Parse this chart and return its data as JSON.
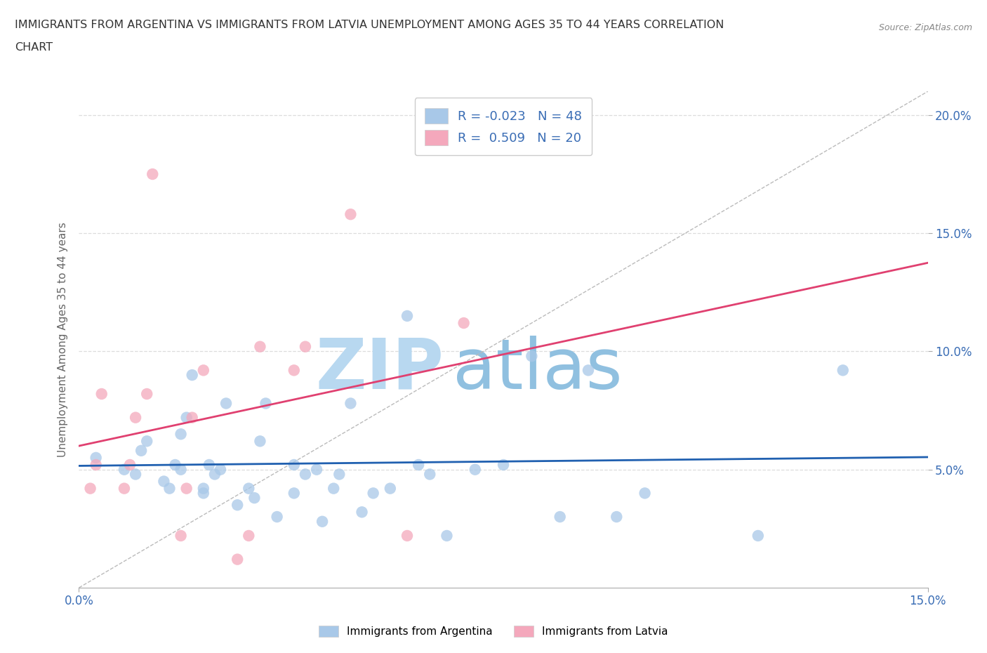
{
  "title_line1": "IMMIGRANTS FROM ARGENTINA VS IMMIGRANTS FROM LATVIA UNEMPLOYMENT AMONG AGES 35 TO 44 YEARS CORRELATION",
  "title_line2": "CHART",
  "source": "Source: ZipAtlas.com",
  "ylabel": "Unemployment Among Ages 35 to 44 years",
  "xlim": [
    0,
    0.15
  ],
  "ylim": [
    0,
    0.21
  ],
  "xticks": [
    0.0,
    0.15
  ],
  "xticklabels": [
    "0.0%",
    "15.0%"
  ],
  "yticks_right": [
    0.05,
    0.1,
    0.15,
    0.2
  ],
  "yticklabels_right": [
    "5.0%",
    "10.0%",
    "15.0%",
    "20.0%"
  ],
  "yticks_grid": [
    0.05,
    0.1,
    0.15,
    0.2
  ],
  "argentina_R": -0.023,
  "argentina_N": 48,
  "latvia_R": 0.509,
  "latvia_N": 20,
  "argentina_color": "#a8c8e8",
  "latvia_color": "#f4a8bc",
  "argentina_line_color": "#2060b0",
  "latvia_line_color": "#e04070",
  "diag_color": "#cccccc",
  "watermark_zip": "ZIP",
  "watermark_atlas": "atlas",
  "watermark_color_zip": "#b8d8f0",
  "watermark_color_atlas": "#90c0e0",
  "argentina_x": [
    0.003,
    0.008,
    0.01,
    0.011,
    0.012,
    0.015,
    0.016,
    0.017,
    0.018,
    0.018,
    0.019,
    0.02,
    0.022,
    0.022,
    0.023,
    0.024,
    0.025,
    0.026,
    0.028,
    0.03,
    0.031,
    0.032,
    0.033,
    0.035,
    0.038,
    0.038,
    0.04,
    0.042,
    0.043,
    0.045,
    0.046,
    0.048,
    0.05,
    0.052,
    0.055,
    0.058,
    0.06,
    0.062,
    0.065,
    0.07,
    0.075,
    0.08,
    0.085,
    0.09,
    0.095,
    0.1,
    0.12,
    0.135
  ],
  "argentina_y": [
    0.055,
    0.05,
    0.048,
    0.058,
    0.062,
    0.045,
    0.042,
    0.052,
    0.05,
    0.065,
    0.072,
    0.09,
    0.042,
    0.04,
    0.052,
    0.048,
    0.05,
    0.078,
    0.035,
    0.042,
    0.038,
    0.062,
    0.078,
    0.03,
    0.04,
    0.052,
    0.048,
    0.05,
    0.028,
    0.042,
    0.048,
    0.078,
    0.032,
    0.04,
    0.042,
    0.115,
    0.052,
    0.048,
    0.022,
    0.05,
    0.052,
    0.098,
    0.03,
    0.092,
    0.03,
    0.04,
    0.022,
    0.092
  ],
  "latvia_x": [
    0.002,
    0.003,
    0.004,
    0.008,
    0.009,
    0.01,
    0.012,
    0.013,
    0.018,
    0.019,
    0.02,
    0.022,
    0.028,
    0.03,
    0.032,
    0.038,
    0.04,
    0.048,
    0.058,
    0.068
  ],
  "latvia_y": [
    0.042,
    0.052,
    0.082,
    0.042,
    0.052,
    0.072,
    0.082,
    0.175,
    0.022,
    0.042,
    0.072,
    0.092,
    0.012,
    0.022,
    0.102,
    0.092,
    0.102,
    0.158,
    0.022,
    0.112
  ]
}
